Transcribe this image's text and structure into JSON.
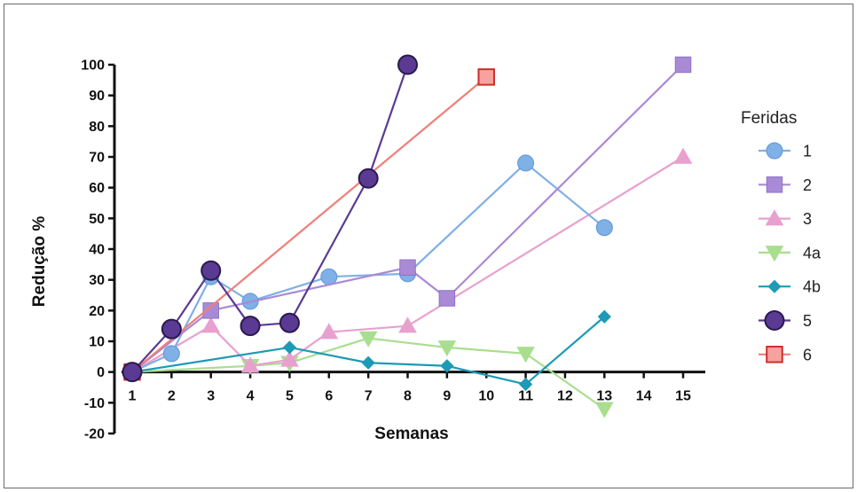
{
  "chart_data": {
    "type": "line",
    "xlabel": "Semanas",
    "ylabel": "Redução %",
    "xlim": [
      1,
      15
    ],
    "ylim": [
      -20,
      100
    ],
    "xticks": [
      1,
      2,
      3,
      4,
      5,
      6,
      7,
      8,
      9,
      10,
      11,
      12,
      13,
      14,
      15
    ],
    "yticks": [
      100,
      90,
      80,
      70,
      60,
      50,
      40,
      30,
      20,
      10,
      0,
      -10,
      -20
    ],
    "grid": false,
    "legend": {
      "title": "Feridas",
      "placement": "right"
    },
    "series": [
      {
        "name": "1",
        "color": "#7fb0e6",
        "marker": "circle",
        "x": [
          1,
          2,
          3,
          4,
          6,
          8,
          11,
          13
        ],
        "y": [
          0,
          6,
          31,
          23,
          31,
          32,
          68,
          47
        ]
      },
      {
        "name": "2",
        "color": "#a98ad6",
        "marker": "square",
        "x": [
          1,
          3,
          8,
          9,
          15
        ],
        "y": [
          0,
          20,
          34,
          24,
          100
        ]
      },
      {
        "name": "3",
        "color": "#e8a0cf",
        "marker": "triangle-up",
        "x": [
          1,
          3,
          4,
          5,
          6,
          8,
          15
        ],
        "y": [
          0,
          15,
          2,
          4,
          13,
          15,
          70
        ]
      },
      {
        "name": "4a",
        "color": "#a9de8f",
        "marker": "triangle-down",
        "x": [
          1,
          4,
          5,
          7,
          9,
          11,
          13
        ],
        "y": [
          0,
          2,
          3,
          11,
          8,
          6,
          -12
        ]
      },
      {
        "name": "4b",
        "color": "#1c9ab6",
        "marker": "diamond",
        "x": [
          1,
          5,
          7,
          9,
          11,
          13
        ],
        "y": [
          0,
          8,
          3,
          2,
          -4,
          18
        ]
      },
      {
        "name": "5",
        "color": "#5a3a93",
        "marker": "circle-filled-dark",
        "x": [
          1,
          2,
          3,
          4,
          5,
          7,
          8
        ],
        "y": [
          0,
          14,
          33,
          15,
          16,
          63,
          100
        ]
      },
      {
        "name": "6",
        "color": "#ee7f7b",
        "marker": "square-outline",
        "x": [
          1,
          10
        ],
        "y": [
          0,
          96
        ]
      }
    ]
  }
}
